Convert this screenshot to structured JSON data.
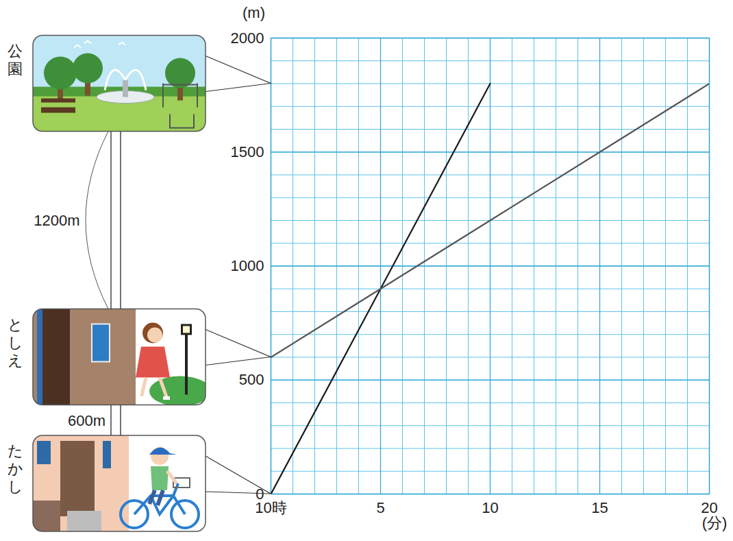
{
  "chart_data": {
    "type": "line",
    "xlabel": "(分)",
    "ylabel": "(m)",
    "x": [
      0,
      5,
      10,
      15,
      20
    ],
    "xlim": [
      0,
      20
    ],
    "xticks": [
      {
        "value": 0,
        "label": "10時"
      },
      5,
      10,
      15,
      20
    ],
    "ylim": [
      0,
      2000
    ],
    "yticks": [
      0,
      500,
      1000,
      1500,
      2000
    ],
    "grid": true,
    "series": [
      {
        "name": "たかし",
        "color": "#1a1a1a",
        "values": [
          0,
          900,
          1800,
          null,
          null
        ]
      },
      {
        "name": "としえ",
        "color": "#555555",
        "values": [
          600,
          900,
          1200,
          1500,
          1800
        ]
      }
    ],
    "annotations": [
      {
        "text": "公園",
        "y": 1800
      },
      {
        "text": "1200m",
        "from": 600,
        "to": 1800
      },
      {
        "text": "600m",
        "from": 0,
        "to": 600
      }
    ]
  }
}
